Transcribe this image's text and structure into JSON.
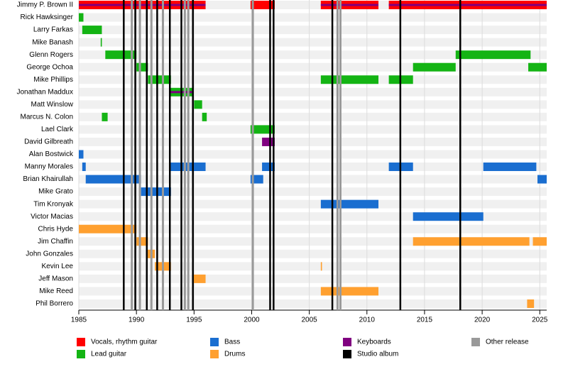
{
  "chart_data": {
    "type": "timeline",
    "xlim": [
      1985,
      2025.6
    ],
    "xticks": [
      1985,
      1990,
      1995,
      2000,
      2005,
      2010,
      2015,
      2020,
      2025
    ],
    "grid": true,
    "roles": [
      {
        "name": "Vocals, rhythm guitar",
        "color": "#ff0000"
      },
      {
        "name": "Lead guitar",
        "color": "#14b414"
      },
      {
        "name": "Bass",
        "color": "#1a6ed0"
      },
      {
        "name": "Drums",
        "color": "#ffa030"
      },
      {
        "name": "Keyboards",
        "color": "#800080"
      }
    ],
    "albums": {
      "name": "Studio album",
      "color": "#000000",
      "x": [
        1988.9,
        1989.9,
        1990.9,
        1991.8,
        1992.9,
        1993.9,
        1994.9,
        2001.6,
        2001.9,
        2007.0,
        2012.9,
        2018.1
      ]
    },
    "other_releases": {
      "name": "Other release",
      "color": "#999999",
      "x": [
        1989.6,
        1990.3,
        1991.3,
        1992.3,
        1994.2,
        1994.5,
        2000.1,
        2007.45,
        2007.7
      ]
    },
    "members": [
      {
        "name": "Jimmy P. Brown II",
        "spans": [
          {
            "role": "Vocals, rhythm guitar",
            "also": "Keyboards",
            "start": 1985,
            "end": 1996
          },
          {
            "role": "Vocals, rhythm guitar",
            "start": 1999.9,
            "end": 2002
          },
          {
            "role": "Vocals, rhythm guitar",
            "also": "Keyboards",
            "start": 2006,
            "end": 2011
          },
          {
            "role": "Vocals, rhythm guitar",
            "also": "Keyboards",
            "start": 2011.9,
            "end": 2025.6
          }
        ]
      },
      {
        "name": "Rick Hawksinger",
        "spans": [
          {
            "role": "Lead guitar",
            "start": 1985,
            "end": 1985.4
          }
        ]
      },
      {
        "name": "Larry Farkas",
        "spans": [
          {
            "role": "Lead guitar",
            "start": 1985.3,
            "end": 1987
          }
        ]
      },
      {
        "name": "Mike Banash",
        "spans": [
          {
            "role": "Lead guitar",
            "start": 1986.9,
            "end": 1987
          }
        ]
      },
      {
        "name": "Glenn Rogers",
        "spans": [
          {
            "role": "Lead guitar",
            "start": 1987.3,
            "end": 1990
          },
          {
            "role": "Lead guitar",
            "start": 2017.7,
            "end": 2024.2
          }
        ]
      },
      {
        "name": "George Ochoa",
        "spans": [
          {
            "role": "Lead guitar",
            "start": 1990,
            "end": 1991
          },
          {
            "role": "Lead guitar",
            "start": 2014,
            "end": 2017.7
          },
          {
            "role": "Lead guitar",
            "start": 2024,
            "end": 2025.6
          }
        ]
      },
      {
        "name": "Mike Phillips",
        "spans": [
          {
            "role": "Lead guitar",
            "start": 1991,
            "end": 1993
          },
          {
            "role": "Lead guitar",
            "start": 2006,
            "end": 2011
          },
          {
            "role": "Lead guitar",
            "start": 2011.9,
            "end": 2014
          }
        ]
      },
      {
        "name": "Jonathan Maddux",
        "spans": [
          {
            "role": "Lead guitar",
            "also": "Keyboards",
            "start": 1992.9,
            "end": 1994.9
          }
        ]
      },
      {
        "name": "Matt Winslow",
        "spans": [
          {
            "role": "Lead guitar",
            "start": 1995,
            "end": 1995.7
          }
        ]
      },
      {
        "name": "Marcus N. Colon",
        "spans": [
          {
            "role": "Lead guitar",
            "start": 1987,
            "end": 1987.5
          },
          {
            "role": "Lead guitar",
            "start": 1995.7,
            "end": 1996.1
          }
        ]
      },
      {
        "name": "Lael Clark",
        "spans": [
          {
            "role": "Lead guitar",
            "start": 1999.9,
            "end": 2002
          }
        ]
      },
      {
        "name": "David Gilbreath",
        "spans": [
          {
            "role": "Keyboards",
            "start": 2000.9,
            "end": 2002
          }
        ]
      },
      {
        "name": "Alan Bostwick",
        "spans": [
          {
            "role": "Bass",
            "start": 1985,
            "end": 1985.4
          }
        ]
      },
      {
        "name": "Manny Morales",
        "spans": [
          {
            "role": "Bass",
            "start": 1985.3,
            "end": 1985.6
          },
          {
            "role": "Bass",
            "start": 1992.9,
            "end": 1996
          },
          {
            "role": "Bass",
            "start": 2000.9,
            "end": 2002
          },
          {
            "role": "Bass",
            "start": 2011.9,
            "end": 2014
          },
          {
            "role": "Bass",
            "start": 2020.1,
            "end": 2024.7
          }
        ]
      },
      {
        "name": "Brian Khairullah",
        "spans": [
          {
            "role": "Bass",
            "start": 1985.6,
            "end": 1990.4
          },
          {
            "role": "Bass",
            "start": 1999.9,
            "end": 2001
          },
          {
            "role": "Bass",
            "start": 2024.8,
            "end": 2025.6
          }
        ]
      },
      {
        "name": "Mike Grato",
        "spans": [
          {
            "role": "Bass",
            "start": 1990.4,
            "end": 1993
          }
        ]
      },
      {
        "name": "Tim Kronyak",
        "spans": [
          {
            "role": "Bass",
            "start": 2006,
            "end": 2011
          }
        ]
      },
      {
        "name": "Victor Macias",
        "spans": [
          {
            "role": "Bass",
            "start": 2014,
            "end": 2020.1
          }
        ]
      },
      {
        "name": "Chris Hyde",
        "spans": [
          {
            "role": "Drums",
            "start": 1985,
            "end": 1990
          }
        ]
      },
      {
        "name": "Jim Chaffin",
        "spans": [
          {
            "role": "Drums",
            "start": 1990,
            "end": 1991
          },
          {
            "role": "Drums",
            "start": 2014,
            "end": 2024.1
          },
          {
            "role": "Drums",
            "start": 2024.4,
            "end": 2025.6
          }
        ]
      },
      {
        "name": "John Gonzales",
        "spans": [
          {
            "role": "Drums",
            "start": 1990.9,
            "end": 1991.6
          }
        ]
      },
      {
        "name": "Kevin Lee",
        "spans": [
          {
            "role": "Drums",
            "start": 1991.6,
            "end": 1993
          },
          {
            "role": "Drums",
            "start": 2006,
            "end": 2006.1
          }
        ]
      },
      {
        "name": "Jeff Mason",
        "spans": [
          {
            "role": "Drums",
            "start": 1994.9,
            "end": 1996
          }
        ]
      },
      {
        "name": "Mike Reed",
        "spans": [
          {
            "role": "Drums",
            "start": 2006,
            "end": 2011
          }
        ]
      },
      {
        "name": "Phil Borrero",
        "spans": [
          {
            "role": "Drums",
            "start": 2023.9,
            "end": 2024.5
          }
        ]
      }
    ]
  }
}
